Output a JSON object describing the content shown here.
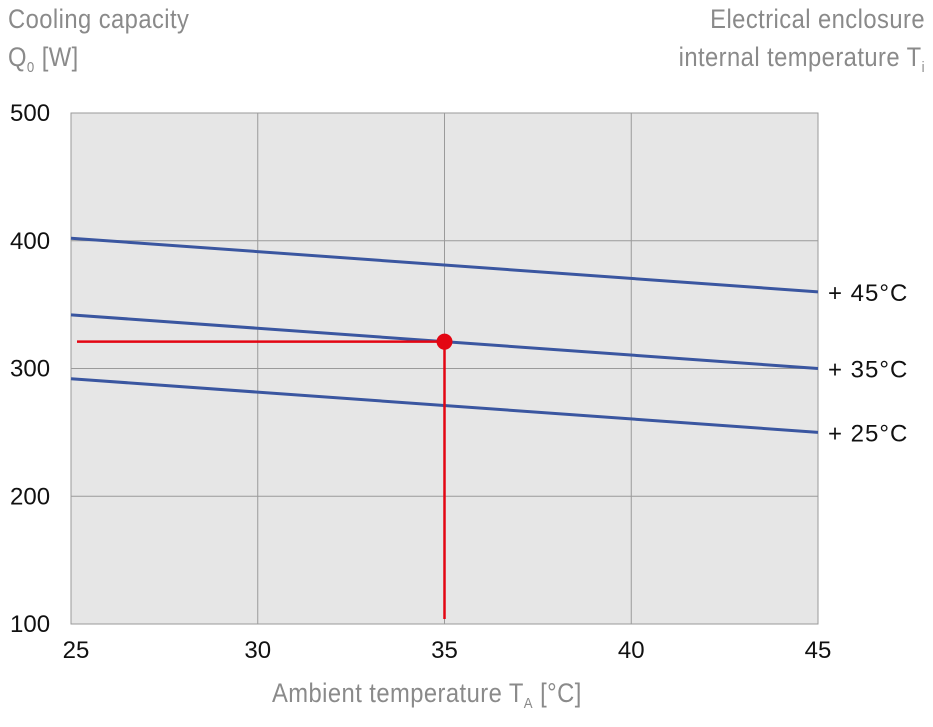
{
  "chart_data": {
    "type": "line",
    "ylabel": {
      "main": "Cooling capacity",
      "symbol": "Q",
      "sub": "0",
      "unit": "[W]"
    },
    "legend_title": {
      "line1": "Electrical enclosure",
      "line2": "internal temperature T",
      "sub": "i"
    },
    "xlabel": {
      "main": "Ambient temperature T",
      "sub": "A",
      "unit": "[°C]"
    },
    "xlim": [
      25,
      45
    ],
    "ylim": [
      100,
      500
    ],
    "xticks": [
      25,
      30,
      35,
      40,
      45
    ],
    "yticks": [
      100,
      200,
      300,
      400,
      500
    ],
    "grid": true,
    "legend_placement": "right",
    "series": [
      {
        "name": "+45°C",
        "x": [
          25,
          45
        ],
        "y": [
          402,
          360
        ]
      },
      {
        "name": "+35°C",
        "x": [
          25,
          45
        ],
        "y": [
          342,
          300
        ]
      },
      {
        "name": "+25°C",
        "x": [
          25,
          45
        ],
        "y": [
          292,
          250
        ]
      }
    ],
    "annotation": {
      "point": {
        "x": 35,
        "y": 321
      },
      "guide_from_x": 25,
      "guide_to_y": 100
    },
    "colors": {
      "series": "#3a56a0",
      "annotation": "#e30613",
      "plot_bg": "#e6e6e6",
      "grid": "#9a9a9a"
    }
  }
}
